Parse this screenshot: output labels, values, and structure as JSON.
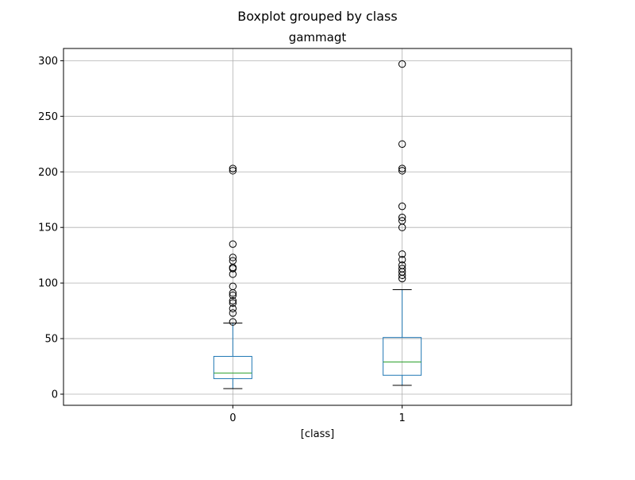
{
  "chart_data": {
    "type": "boxplot",
    "title": "Boxplot grouped by class",
    "subtitle": "gammagt",
    "xlabel": "[class]",
    "ylabel": "",
    "ylim": [
      -10,
      311
    ],
    "yticks": [
      0,
      50,
      100,
      150,
      200,
      250,
      300
    ],
    "grid": true,
    "categories": [
      "0",
      "1"
    ],
    "boxes": [
      {
        "category": "0",
        "whisker_low": 5,
        "q1": 14,
        "median": 19,
        "q3": 34,
        "whisker_high": 64,
        "outliers": [
          65,
          73,
          77,
          82,
          84,
          89,
          91,
          97,
          108,
          113,
          114,
          120,
          123,
          135,
          201,
          203
        ]
      },
      {
        "category": "1",
        "whisker_low": 8,
        "q1": 17,
        "median": 29,
        "q3": 51,
        "whisker_high": 94,
        "outliers": [
          104,
          107,
          110,
          113,
          116,
          121,
          126,
          150,
          156,
          159,
          169,
          201,
          203,
          225,
          297
        ]
      }
    ],
    "colors": {
      "box": "#1f77b4",
      "median": "#2ca02c",
      "whisker_cap": "#000000",
      "grid": "#b0b0b0",
      "outlier_edge": "#000000"
    }
  }
}
